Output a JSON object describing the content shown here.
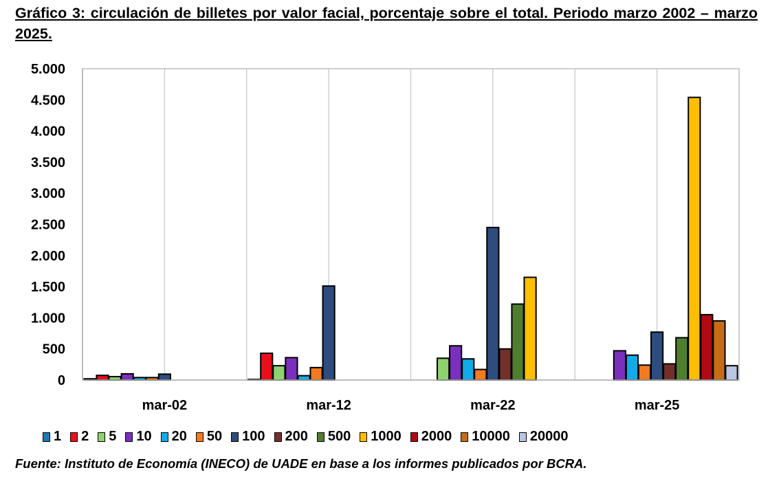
{
  "title": "Gráfico 3: circulación de billetes por valor facial, porcentaje sobre el total. Periodo marzo 2002 – marzo 2025.",
  "source": "Fuente: Instituto de Economía (INECO) de UADE en base a los informes publicados por BCRA.",
  "chart_data": {
    "type": "bar",
    "title": "",
    "xlabel": "",
    "ylabel": "",
    "ylim": [
      0,
      5000
    ],
    "yticks": [
      0,
      500,
      1000,
      1500,
      2000,
      2500,
      3000,
      3500,
      4000,
      4500,
      5000
    ],
    "ytick_labels": [
      "0",
      "500",
      "1.000",
      "1.500",
      "2.000",
      "2.500",
      "3.000",
      "3.500",
      "4.000",
      "4.500",
      "5.000"
    ],
    "grid": "vertical",
    "legend_position": "bottom",
    "categories": [
      "mar-02",
      "mar-12",
      "mar-22",
      "mar-25"
    ],
    "series": [
      {
        "name": "1",
        "color": "#1f77b4",
        "values": [
          20,
          10,
          0,
          0
        ]
      },
      {
        "name": "2",
        "color": "#e8101a",
        "values": [
          75,
          430,
          0,
          0
        ]
      },
      {
        "name": "5",
        "color": "#8fd16f",
        "values": [
          55,
          230,
          350,
          0
        ]
      },
      {
        "name": "10",
        "color": "#7b2fbe",
        "values": [
          100,
          360,
          550,
          470
        ]
      },
      {
        "name": "20",
        "color": "#12aae8",
        "values": [
          40,
          70,
          340,
          400
        ]
      },
      {
        "name": "50",
        "color": "#f27a20",
        "values": [
          40,
          200,
          170,
          240
        ]
      },
      {
        "name": "100",
        "color": "#2e4d7e",
        "values": [
          95,
          1510,
          2450,
          770
        ]
      },
      {
        "name": "200",
        "color": "#73302b",
        "values": [
          0,
          0,
          500,
          260
        ]
      },
      {
        "name": "500",
        "color": "#4f7f2e",
        "values": [
          0,
          0,
          1220,
          680
        ]
      },
      {
        "name": "1000",
        "color": "#ffbf00",
        "values": [
          0,
          0,
          1650,
          4540
        ]
      },
      {
        "name": "2000",
        "color": "#b00b12",
        "values": [
          0,
          0,
          0,
          1050
        ]
      },
      {
        "name": "10000",
        "color": "#c76b16",
        "values": [
          0,
          0,
          0,
          950
        ]
      },
      {
        "name": "20000",
        "color": "#b8c6e3",
        "values": [
          0,
          0,
          0,
          230
        ]
      }
    ]
  }
}
